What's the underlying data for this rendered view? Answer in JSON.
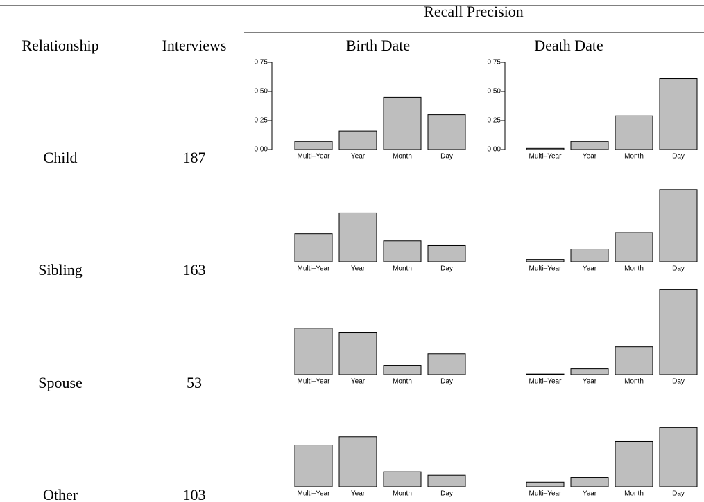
{
  "header": {
    "group": "Recall Precision",
    "relationship": "Relationship",
    "interviews": "Interviews",
    "birth": "Birth Date",
    "death": "Death Date"
  },
  "rows": [
    {
      "relationship": "Child",
      "interviews": 187,
      "birth": {
        "type": "bar",
        "categories": [
          "Multi–Year",
          "Year",
          "Month",
          "Day"
        ],
        "values": [
          0.07,
          0.16,
          0.45,
          0.3
        ],
        "color": "#bebebe",
        "ylim": [
          0,
          0.75
        ],
        "yticks": [
          {
            "value": 0,
            "label": "0.00"
          },
          {
            "value": 0.25,
            "label": "0.25"
          },
          {
            "value": 0.5,
            "label": "0.50"
          },
          {
            "value": 0.75,
            "label": "0.75"
          }
        ]
      },
      "death": {
        "type": "bar",
        "categories": [
          "Multi–Year",
          "Year",
          "Month",
          "Day"
        ],
        "values": [
          0.01,
          0.07,
          0.29,
          0.61
        ],
        "color": "#bebebe",
        "ylim": [
          0,
          0.75
        ],
        "yticks": [
          {
            "value": 0,
            "label": "0.00"
          },
          {
            "value": 0.25,
            "label": "0.25"
          },
          {
            "value": 0.5,
            "label": "0.50"
          },
          {
            "value": 0.75,
            "label": "0.75"
          }
        ]
      }
    },
    {
      "relationship": "Sibling",
      "interviews": 163,
      "birth": {
        "type": "bar",
        "categories": [
          "Multi–Year",
          "Year",
          "Month",
          "Day"
        ],
        "values": [
          0.24,
          0.42,
          0.18,
          0.14
        ],
        "color": "#bebebe",
        "ylim": [
          0,
          0.75
        ]
      },
      "death": {
        "type": "bar",
        "categories": [
          "Multi–Year",
          "Year",
          "Month",
          "Day"
        ],
        "values": [
          0.02,
          0.11,
          0.25,
          0.62
        ],
        "color": "#bebebe",
        "ylim": [
          0,
          0.75
        ]
      }
    },
    {
      "relationship": "Spouse",
      "interviews": 53,
      "birth": {
        "type": "bar",
        "categories": [
          "Multi–Year",
          "Year",
          "Month",
          "Day"
        ],
        "values": [
          0.4,
          0.36,
          0.08,
          0.18
        ],
        "color": "#bebebe",
        "ylim": [
          0,
          0.75
        ]
      },
      "death": {
        "type": "bar",
        "categories": [
          "Multi–Year",
          "Year",
          "Month",
          "Day"
        ],
        "values": [
          0.005,
          0.05,
          0.24,
          0.73
        ],
        "color": "#bebebe",
        "ylim": [
          0,
          0.75
        ]
      }
    },
    {
      "relationship": "Other",
      "interviews": 103,
      "birth": {
        "type": "bar",
        "categories": [
          "Multi–Year",
          "Year",
          "Month",
          "Day"
        ],
        "values": [
          0.36,
          0.43,
          0.13,
          0.1
        ],
        "color": "#bebebe",
        "ylim": [
          0,
          0.75
        ]
      },
      "death": {
        "type": "bar",
        "categories": [
          "Multi–Year",
          "Year",
          "Month",
          "Day"
        ],
        "values": [
          0.04,
          0.08,
          0.39,
          0.51
        ],
        "color": "#bebebe",
        "ylim": [
          0,
          0.75
        ]
      }
    }
  ]
}
